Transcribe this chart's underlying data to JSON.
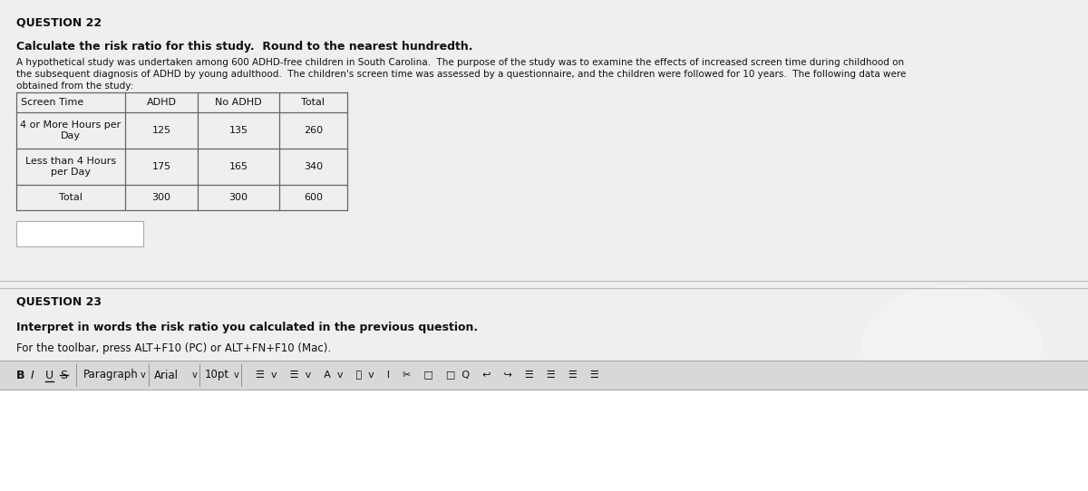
{
  "bg_color": "#d8d8d8",
  "content_bg": "#efefef",
  "white": "#ffffff",
  "question22_label": "QUESTION 22",
  "bold_instruction": "Calculate the risk ratio for this study.  Round to the nearest hundredth.",
  "description_line1": "A hypothetical study was undertaken among 600 ADHD-free children in South Carolina.  The purpose of the study was to examine the effects of increased screen time during childhood on",
  "description_line2": "the subsequent diagnosis of ADHD by young adulthood.  The children's screen time was assessed by a questionnaire, and the children were followed for 10 years.  The following data were",
  "description_line3": "obtained from the study:",
  "table_headers": [
    "Screen Time",
    "ADHD",
    "No ADHD",
    "Total"
  ],
  "table_rows": [
    [
      "4 or More Hours per\nDay",
      "125",
      "135",
      "260"
    ],
    [
      "Less than 4 Hours\nper Day",
      "175",
      "165",
      "340"
    ],
    [
      "Total",
      "300",
      "300",
      "600"
    ]
  ],
  "question23_label": "QUESTION 23",
  "q23_bold": "Interpret in words the risk ratio you calculated in the previous question.",
  "q23_toolbar_note": "For the toolbar, press ALT+F10 (PC) or ALT+FN+F10 (Mac).",
  "separator_color": "#bbbbbb",
  "table_border_color": "#666666",
  "text_color": "#111111",
  "light_gray_text": "#333333"
}
